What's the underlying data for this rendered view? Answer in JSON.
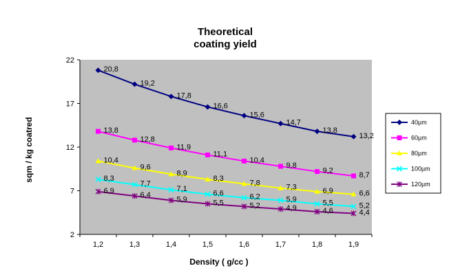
{
  "chart_data": {
    "type": "line",
    "title_lines": [
      "Theoretical",
      "coating  yield"
    ],
    "xlabel": "Density  ( g/cc )",
    "ylabel": "sqm / kg  coatred",
    "x": [
      "1,2",
      "1,3",
      "1,4",
      "1,5",
      "1,6",
      "1,7",
      "1,8",
      "1,9"
    ],
    "y_ticks": [
      2,
      7,
      12,
      17,
      22
    ],
    "ylim": [
      2,
      22
    ],
    "grid": false,
    "legend_position": "right",
    "plot_background": "#c0c0c0",
    "series": [
      {
        "name": "40µm",
        "color": "#000080",
        "marker": "diamond",
        "values": [
          20.8,
          19.2,
          17.8,
          16.6,
          15.6,
          14.7,
          13.8,
          13.2
        ],
        "labels": [
          "20,8",
          "19,2",
          "17,8",
          "16,6",
          "15,6",
          "14,7",
          "13,8",
          "13,2"
        ]
      },
      {
        "name": "60µm",
        "color": "#ff00ff",
        "marker": "square",
        "values": [
          13.8,
          12.8,
          11.9,
          11.1,
          10.4,
          9.8,
          9.2,
          8.7
        ],
        "labels": [
          "13,8",
          "12,8",
          "11,9",
          "11,1",
          "10,4",
          "9,8",
          "9,2",
          "8,7"
        ]
      },
      {
        "name": "80µm",
        "color": "#ffff00",
        "marker": "triangle",
        "values": [
          10.4,
          9.6,
          8.9,
          8.3,
          7.8,
          7.3,
          6.9,
          6.6
        ],
        "labels": [
          "10,4",
          "9,6",
          "8,9",
          "8,3",
          "7,8",
          "7,3",
          "6,9",
          "6,6"
        ]
      },
      {
        "name": "100µm",
        "color": "#00ffff",
        "marker": "x",
        "values": [
          8.3,
          7.7,
          7.1,
          6.6,
          6.2,
          5.9,
          5.5,
          5.2
        ],
        "labels": [
          "8,3",
          "7,7",
          "7,1",
          "6,6",
          "6,2",
          "5,9",
          "5,5",
          "5,2"
        ]
      },
      {
        "name": "120µm",
        "color": "#800080",
        "marker": "star",
        "values": [
          6.9,
          6.4,
          5.9,
          5.5,
          5.2,
          4.9,
          4.6,
          4.4
        ],
        "labels": [
          "6,9",
          "6,4",
          "5,9",
          "5,5",
          "5,2",
          "4,9",
          "4,6",
          "4,4"
        ]
      }
    ]
  }
}
